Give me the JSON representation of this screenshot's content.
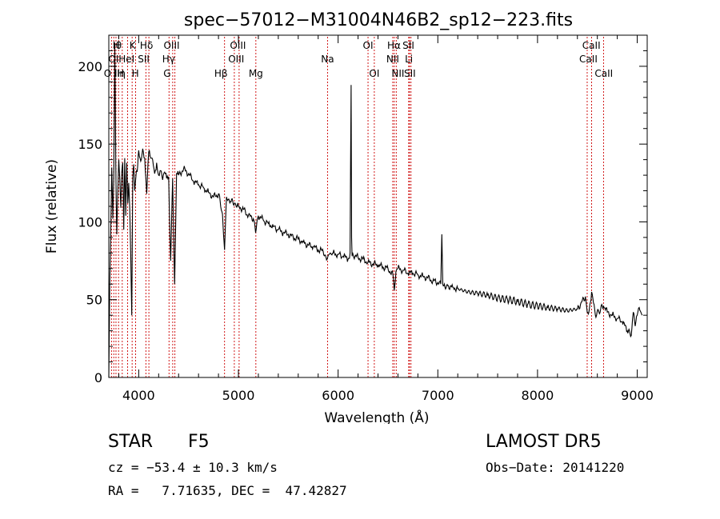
{
  "footer": {
    "class_label": "STAR",
    "subclass_label": "F5",
    "survey": "LAMOST DR5",
    "cz_text": "cz = −53.4 ± 10.3 km/s",
    "obs_date_text": "Obs−Date: 20141220",
    "coords_text": "RA =   7.71635, DEC =  47.42827"
  },
  "chart_data": {
    "type": "line",
    "title": "spec−57012−M31004N46B2_sp12−223.fits",
    "xlabel": "Wavelength (Å)",
    "ylabel": "Flux (relative)",
    "xlim": [
      3700,
      9100
    ],
    "ylim": [
      0,
      220
    ],
    "xticks": [
      4000,
      5000,
      6000,
      7000,
      8000,
      9000
    ],
    "yticks": [
      0,
      50,
      100,
      150,
      200
    ],
    "grid": false,
    "line_color": "#000000",
    "marker_color": "#cc0000",
    "series": [
      {
        "x": [
          3700,
          3710,
          3720,
          3730,
          3740,
          3750,
          3760,
          3770,
          3780,
          3790,
          3800,
          3810,
          3820,
          3830,
          3840,
          3850,
          3860,
          3870,
          3880,
          3890,
          3900,
          3910,
          3920,
          3930,
          3940,
          3950,
          3960,
          3970,
          3980,
          3990,
          4000,
          4020,
          4040,
          4060,
          4080,
          4100,
          4120,
          4140,
          4160,
          4180,
          4200,
          4220,
          4240,
          4260,
          4280,
          4300,
          4320,
          4340,
          4360,
          4380,
          4400,
          4450,
          4500,
          4550,
          4600,
          4650,
          4700,
          4750,
          4800,
          4840,
          4861,
          4880,
          4920,
          4960,
          5000,
          5050,
          5100,
          5150,
          5172,
          5200,
          5250,
          5300,
          5350,
          5400,
          5450,
          5500,
          5550,
          5600,
          5650,
          5700,
          5750,
          5800,
          5850,
          5890,
          5920,
          5950,
          6000,
          6050,
          6100,
          6120,
          6130,
          6135,
          6140,
          6150,
          6200,
          6250,
          6300,
          6350,
          6400,
          6450,
          6500,
          6550,
          6563,
          6580,
          6600,
          6650,
          6700,
          6750,
          6800,
          6850,
          6900,
          6950,
          7000,
          7030,
          7040,
          7050,
          7060,
          7100,
          7150,
          7200,
          7300,
          7400,
          7500,
          7600,
          7700,
          7800,
          7900,
          8000,
          8100,
          8200,
          8300,
          8400,
          8480,
          8498,
          8520,
          8542,
          8580,
          8662,
          8700,
          8750,
          8800,
          8850,
          8900,
          8940,
          8960,
          8980,
          9000,
          9020,
          9050
        ],
        "y": [
          0,
          60,
          96,
          135,
          102,
          128,
          215,
          138,
          92,
          118,
          140,
          128,
          109,
          132,
          138,
          95,
          141,
          104,
          138,
          112,
          125,
          108,
          80,
          40,
          128,
          137,
          120,
          128,
          133,
          136,
          146,
          139,
          147,
          141,
          118,
          145,
          141,
          140,
          131,
          138,
          130,
          133,
          127,
          132,
          128,
          129,
          75,
          128,
          60,
          131,
          130,
          134,
          131,
          126,
          124,
          122,
          119,
          116,
          118,
          105,
          82,
          116,
          113,
          112,
          110,
          108,
          104,
          102,
          93,
          104,
          101,
          99,
          97,
          95,
          93,
          92,
          90,
          89,
          87,
          85,
          84,
          82,
          81,
          76,
          80,
          80,
          79,
          78,
          76,
          80,
          188,
          90,
          78,
          79,
          77,
          76,
          74,
          73,
          72,
          71,
          70,
          66,
          56,
          68,
          70,
          69,
          67,
          67,
          66,
          65,
          64,
          62,
          61,
          60,
          92,
          60,
          59,
          59,
          58,
          57,
          55,
          54,
          53,
          51,
          50,
          49,
          47,
          46,
          45,
          44,
          43,
          44,
          52,
          42,
          44,
          55,
          40,
          46,
          42,
          40,
          38,
          36,
          30,
          27,
          42,
          33,
          40,
          45,
          40
        ]
      }
    ],
    "lines": [
      {
        "wl": 3727,
        "top": [
          "O II"
        ]
      },
      {
        "wl": 3750,
        "top": [
          "OI"
        ]
      },
      {
        "wl": 3772,
        "top": [
          "Hθ"
        ]
      },
      {
        "wl": 3798,
        "top": [
          "Hη"
        ]
      },
      {
        "wl": 3835,
        "top": [
          "Hη"
        ]
      },
      {
        "wl": 3889,
        "top": [
          "HeI"
        ]
      },
      {
        "wl": 3934,
        "top": [
          "K"
        ]
      },
      {
        "wl": 3969,
        "top": [
          "H"
        ]
      },
      {
        "wl": 4072,
        "top": [
          "SII"
        ]
      },
      {
        "wl": 4102,
        "top": [
          "Hδ"
        ]
      },
      {
        "wl": 4304,
        "top": [
          "G"
        ]
      },
      {
        "wl": 4341,
        "top": [
          "Hγ"
        ]
      },
      {
        "wl": 4363,
        "top": [
          "OIII"
        ]
      },
      {
        "wl": 4861,
        "top": [
          "Hβ"
        ]
      },
      {
        "wl": 4959,
        "top": [
          "OIII"
        ]
      },
      {
        "wl": 5007,
        "top": [
          "OIII"
        ]
      },
      {
        "wl": 5175,
        "top": [
          "Mg"
        ]
      },
      {
        "wl": 5894,
        "top": [
          "Na"
        ]
      },
      {
        "wl": 6300,
        "top": [
          "OI"
        ]
      },
      {
        "wl": 6363,
        "top": [
          "OI"
        ]
      },
      {
        "wl": 6548,
        "top": [
          "NII"
        ]
      },
      {
        "wl": 6563,
        "top": [
          "Hα"
        ]
      },
      {
        "wl": 6583,
        "top": [
          "NII"
        ]
      },
      {
        "wl": 6708,
        "top": [
          "Li"
        ]
      },
      {
        "wl": 6716,
        "top": [
          "SII"
        ]
      },
      {
        "wl": 6731,
        "top": [
          "SII"
        ]
      },
      {
        "wl": 8498,
        "top": [
          "CaII"
        ]
      },
      {
        "wl": 8542,
        "top": [
          "CaII"
        ]
      },
      {
        "wl": 8662,
        "top": [
          "CaII"
        ]
      }
    ],
    "line_labels": [
      {
        "text": "O II",
        "wl": 3731,
        "row": 2
      },
      {
        "text": "OI",
        "wl": 3748,
        "row": 1
      },
      {
        "text": "H",
        "wl": 3775,
        "row": 0
      },
      {
        "text": "θ",
        "wl": 3800,
        "row": 0
      },
      {
        "text": "H",
        "wl": 3818,
        "row": 2
      },
      {
        "text": "η",
        "wl": 3838,
        "row": 2
      },
      {
        "text": "HeI",
        "wl": 3878,
        "row": 1
      },
      {
        "text": "K",
        "wl": 3938,
        "row": 0
      },
      {
        "text": "H",
        "wl": 3966,
        "row": 2
      },
      {
        "text": "SII",
        "wl": 4050,
        "row": 1
      },
      {
        "text": "Hδ",
        "wl": 4078,
        "row": 0
      },
      {
        "text": "G",
        "wl": 4285,
        "row": 2
      },
      {
        "text": "Hγ",
        "wl": 4300,
        "row": 1
      },
      {
        "text": "OIII",
        "wl": 4330,
        "row": 0
      },
      {
        "text": "Hβ",
        "wl": 4825,
        "row": 2
      },
      {
        "text": "OIII",
        "wl": 4978,
        "row": 1
      },
      {
        "text": "OIII",
        "wl": 4995,
        "row": 0
      },
      {
        "text": "Mg",
        "wl": 5175,
        "row": 2
      },
      {
        "text": "Na",
        "wl": 5894,
        "row": 1
      },
      {
        "text": "OI",
        "wl": 6300,
        "row": 0
      },
      {
        "text": "OI",
        "wl": 6363,
        "row": 2
      },
      {
        "text": "NII",
        "wl": 6548,
        "row": 1
      },
      {
        "text": "Hα",
        "wl": 6560,
        "row": 0
      },
      {
        "text": "NII",
        "wl": 6600,
        "row": 2
      },
      {
        "text": "Li",
        "wl": 6710,
        "row": 1
      },
      {
        "text": "SII",
        "wl": 6705,
        "row": 0
      },
      {
        "text": "SII",
        "wl": 6720,
        "row": 2
      },
      {
        "text": "CaII",
        "wl": 8540,
        "row": 0
      },
      {
        "text": "CaII",
        "wl": 8510,
        "row": 1
      },
      {
        "text": "CaII",
        "wl": 8665,
        "row": 2
      }
    ]
  }
}
